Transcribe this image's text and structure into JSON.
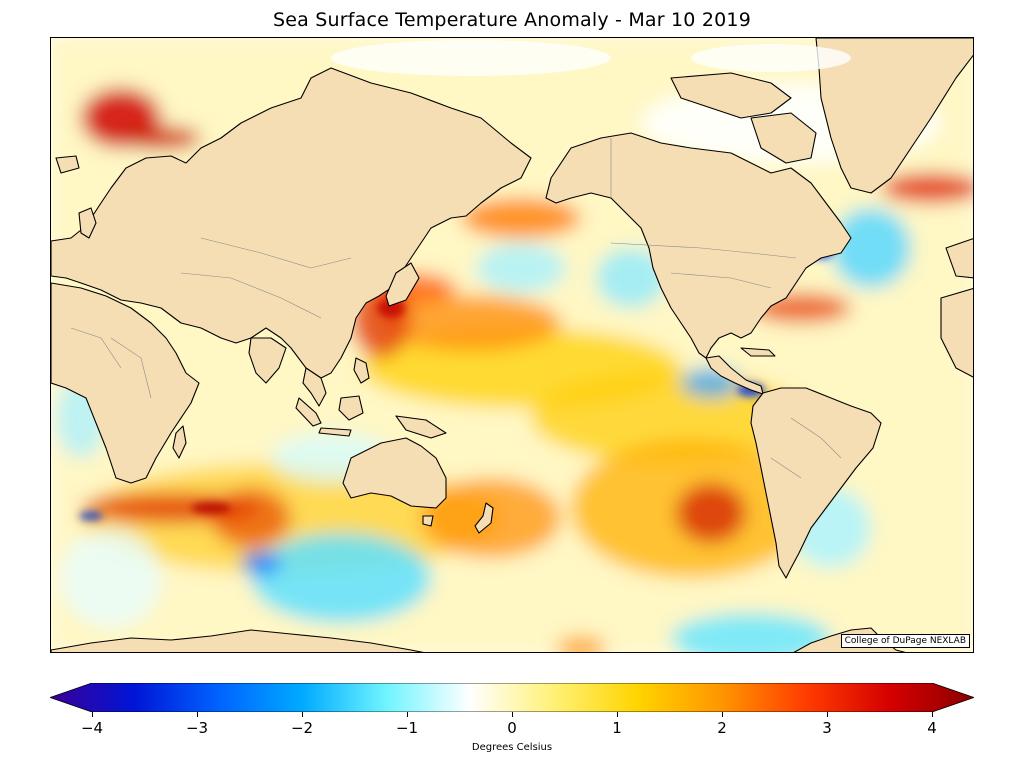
{
  "title": "Sea Surface Temperature Anomaly - Mar 10 2019",
  "credit": "College of DuPage NEXLAB",
  "colorbar": {
    "label": "Degrees Celsius",
    "min": -4,
    "max": 4,
    "ticks": [
      "−4",
      "−3",
      "−2",
      "−1",
      "0",
      "1",
      "2",
      "3",
      "4"
    ],
    "extend": "both",
    "colors": [
      "#3b0096",
      "#0015d6",
      "#0062ff",
      "#00aaff",
      "#6ff4ff",
      "#ffffff",
      "#fff176",
      "#ffd400",
      "#ff9500",
      "#ff3c00",
      "#d40000",
      "#8c0000"
    ]
  },
  "colors": {
    "land": "#f5deb3",
    "coast": "#000000",
    "border": "#888888",
    "ice": "#ffffff"
  }
}
